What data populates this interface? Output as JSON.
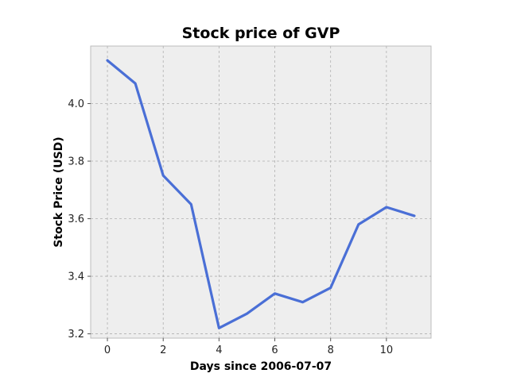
{
  "chart_data": {
    "type": "line",
    "title": "Stock price of GVP",
    "xlabel": "Days since 2006-07-07",
    "ylabel": "Stock Price (USD)",
    "x": [
      0,
      1,
      2,
      3,
      4,
      5,
      6,
      7,
      8,
      9,
      10,
      11
    ],
    "series": [
      {
        "values": [
          4.15,
          4.07,
          3.75,
          3.65,
          3.22,
          3.27,
          3.34,
          3.31,
          3.36,
          3.58,
          3.64,
          3.61
        ],
        "color": "#4a6fd6"
      }
    ],
    "xlim": [
      -0.6,
      11.6
    ],
    "ylim": [
      3.185,
      4.2
    ],
    "xticks": [
      0,
      2,
      4,
      6,
      8,
      10
    ],
    "yticks": [
      3.2,
      3.4,
      3.6,
      3.8,
      4.0
    ],
    "xtick_labels": [
      "0",
      "2",
      "4",
      "6",
      "8",
      "10"
    ],
    "ytick_labels": [
      "3.2",
      "3.4",
      "3.6",
      "3.8",
      "4.0"
    ],
    "grid": true,
    "background": "#eeeeee"
  }
}
